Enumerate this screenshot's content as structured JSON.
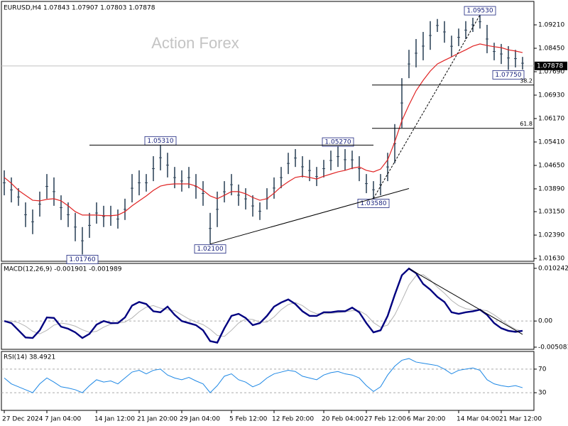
{
  "chart_data": [
    {
      "type": "ohlc",
      "title": "EURUSD,H4  1.07843 1.07907 1.07803 1.07878",
      "watermark": "Action Forex",
      "x": [
        "27 Dec 2024",
        null,
        null,
        null,
        null,
        null,
        "7 Jan 04:00",
        null,
        null,
        null,
        null,
        null,
        null,
        "14 Jan 12:00",
        null,
        null,
        null,
        null,
        null,
        "21 Jan 20:00",
        null,
        null,
        null,
        null,
        null,
        "29 Jan 04:00",
        null,
        null,
        null,
        null,
        null,
        null,
        "5 Feb 12:00",
        null,
        null,
        null,
        null,
        null,
        "12 Feb 20:00",
        null,
        null,
        null,
        null,
        null,
        null,
        "20 Feb 04:00",
        null,
        null,
        null,
        null,
        null,
        "27 Feb 12:00",
        null,
        null,
        null,
        null,
        null,
        "6 Mar 20:00",
        null,
        null,
        null,
        null,
        null,
        null,
        "14 Mar 04:00",
        null,
        null,
        null,
        null,
        null,
        "21 Mar 12:00",
        null,
        null,
        null
      ],
      "highs": [
        1.0449,
        1.0426,
        1.0391,
        1.0345,
        1.0322,
        1.038,
        1.0437,
        1.0426,
        1.0368,
        1.0345,
        1.0311,
        1.0265,
        1.0311,
        1.0345,
        1.0334,
        1.0334,
        1.0322,
        1.0357,
        1.0437,
        1.0449,
        1.0437,
        1.0495,
        1.0531,
        1.0506,
        1.046,
        1.0449,
        1.046,
        1.0437,
        1.0414,
        1.0311,
        1.038,
        1.0414,
        1.0437,
        1.0403,
        1.0391,
        1.0368,
        1.0345,
        1.0391,
        1.0426,
        1.046,
        1.0506,
        1.0518,
        1.0495,
        1.0483,
        1.046,
        1.0483,
        1.0513,
        1.0527,
        1.0518,
        1.0513,
        1.0495,
        1.0437,
        1.0414,
        1.0437,
        1.0506,
        1.0599,
        1.0748,
        1.084,
        1.0875,
        1.0898,
        1.0933,
        1.094,
        1.0933,
        1.0886,
        1.0909,
        1.0933,
        1.0944,
        1.0953,
        1.0921,
        1.0863,
        1.0859,
        1.0852,
        1.084,
        1.0817
      ],
      "lows": [
        1.0368,
        1.0345,
        1.0334,
        1.0265,
        1.0242,
        1.0299,
        1.0357,
        1.0334,
        1.0288,
        1.0265,
        1.0219,
        1.0176,
        1.023,
        1.0276,
        1.0265,
        1.0269,
        1.026,
        1.0288,
        1.0345,
        1.0368,
        1.038,
        1.0414,
        1.0449,
        1.0426,
        1.0391,
        1.038,
        1.0391,
        1.0357,
        1.0334,
        1.021,
        1.0265,
        1.0345,
        1.0368,
        1.0334,
        1.0322,
        1.0299,
        1.0288,
        1.0322,
        1.0357,
        1.0391,
        1.0437,
        1.046,
        1.0426,
        1.0414,
        1.0398,
        1.0426,
        1.0449,
        1.046,
        1.0449,
        1.0453,
        1.0414,
        1.0375,
        1.0358,
        1.0368,
        1.0414,
        1.0472,
        1.0587,
        1.0748,
        1.0783,
        1.0806,
        1.084,
        1.0898,
        1.0863,
        1.0817,
        1.0852,
        1.0875,
        1.0898,
        1.0909,
        1.0829,
        1.0806,
        1.0794,
        1.0775,
        1.0783,
        1.0776
      ],
      "color": "#34495e",
      "ma": {
        "color": "#e02424",
        "values": [
          1.0426,
          1.0407,
          1.0384,
          1.0368,
          1.0352,
          1.035,
          1.0355,
          1.0357,
          1.035,
          1.0334,
          1.0315,
          1.0304,
          1.0304,
          1.0304,
          1.0302,
          1.0302,
          1.0304,
          1.0315,
          1.0334,
          1.035,
          1.0366,
          1.0384,
          1.0398,
          1.0403,
          1.0405,
          1.0405,
          1.0405,
          1.0398,
          1.0384,
          1.0366,
          1.0357,
          1.0368,
          1.038,
          1.038,
          1.0373,
          1.0361,
          1.0352,
          1.0357,
          1.0375,
          1.0396,
          1.0412,
          1.0426,
          1.043,
          1.0426,
          1.0421,
          1.043,
          1.0437,
          1.0444,
          1.0449,
          1.0456,
          1.046,
          1.0449,
          1.0444,
          1.0453,
          1.0483,
          1.0541,
          1.061,
          1.0661,
          1.0707,
          1.0741,
          1.0771,
          1.0794,
          1.0806,
          1.0817,
          1.0829,
          1.084,
          1.0852,
          1.0859,
          1.0854,
          1.085,
          1.0847,
          1.084,
          1.0836,
          1.0831
        ]
      },
      "ylim": [
        1.0154,
        1.0997
      ],
      "yticks": [
        {
          "value": 1.0921,
          "label": "1.09210"
        },
        {
          "value": 1.0845,
          "label": "1.08450"
        },
        {
          "value": 1.0769,
          "label": "1.07690"
        },
        {
          "value": 1.0693,
          "label": "1.06930"
        },
        {
          "value": 1.0617,
          "label": "1.06170"
        },
        {
          "value": 1.0541,
          "label": "1.05410"
        },
        {
          "value": 1.0465,
          "label": "1.04650"
        },
        {
          "value": 1.0389,
          "label": "1.03890"
        },
        {
          "value": 1.0315,
          "label": "1.03150"
        },
        {
          "value": 1.0239,
          "label": "1.02390"
        },
        {
          "value": 1.0163,
          "label": "1.01630"
        }
      ],
      "current_price": {
        "value": 1.07878,
        "label": "1.07878"
      },
      "annotations": [
        {
          "label": "1.05310",
          "value": 1.0531,
          "side": "high"
        },
        {
          "label": "1.05270",
          "value": 1.0527,
          "side": "high"
        },
        {
          "label": "1.09530",
          "value": 1.0953,
          "side": "high"
        },
        {
          "label": "1.01760",
          "value": 1.0176,
          "side": "low"
        },
        {
          "label": "1.02100",
          "value": 1.021,
          "side": "low"
        },
        {
          "label": "1.03580",
          "value": 1.0358,
          "side": "low"
        },
        {
          "label": "1.07750",
          "value": 1.0775,
          "side": "low"
        }
      ],
      "fib_levels": [
        38.2,
        61.8
      ]
    },
    {
      "type": "macd",
      "title": "MACD(12,26,9) -0.001901 -0.001989",
      "macd": {
        "color": "#000080",
        "values": [
          0,
          -0.0004,
          -0.0018,
          -0.0032,
          -0.0033,
          -0.0018,
          0.0007,
          0.0006,
          -0.0011,
          -0.0015,
          -0.0022,
          -0.0033,
          -0.0025,
          -0.0007,
          0,
          -0.0004,
          -0.0004,
          0.0007,
          0.003,
          0.0037,
          0.0033,
          0.0019,
          0.0017,
          0.0028,
          0.0012,
          0,
          -0.0004,
          -0.0008,
          -0.0018,
          -0.0039,
          -0.0042,
          -0.0014,
          0.001,
          0.0014,
          0.0006,
          -0.0008,
          -0.0004,
          0.001,
          0.0028,
          0.0036,
          0.0042,
          0.0033,
          0.0019,
          0.001,
          0.001,
          0.0017,
          0.0017,
          0.0019,
          0.0019,
          0.0026,
          0.0017,
          -0.0004,
          -0.0022,
          -0.0018,
          0.001,
          0.0051,
          0.0089,
          0.0102,
          0.0093,
          0.0072,
          0.0061,
          0.0047,
          0.0037,
          0.0017,
          0.0014,
          0.0017,
          0.0019,
          0.0022,
          0.0012,
          -0.0004,
          -0.0014,
          -0.0019,
          -0.0021,
          -0.0019
        ]
      },
      "signal": {
        "color": "#b4b4b4",
        "values": [
          0,
          0,
          -0.0003,
          -0.001,
          -0.002,
          -0.0025,
          -0.0018,
          -0.0008,
          -0.0004,
          -0.0006,
          -0.001,
          -0.0017,
          -0.0022,
          -0.002,
          -0.0012,
          -0.0006,
          -0.0004,
          -0.0002,
          0.0006,
          0.0018,
          0.0027,
          0.003,
          0.0025,
          0.0022,
          0.002,
          0.0012,
          0.0004,
          -0.0002,
          -0.0007,
          -0.0016,
          -0.0028,
          -0.003,
          -0.0018,
          -0.0004,
          0.0004,
          0.0003,
          -0.0002,
          -0.0002,
          0.0008,
          0.0022,
          0.0032,
          0.0036,
          0.003,
          0.002,
          0.0014,
          0.0014,
          0.0015,
          0.0016,
          0.0018,
          0.002,
          0.002,
          0.0012,
          -0.0003,
          -0.0012,
          -0.0008,
          0.0012,
          0.004,
          0.007,
          0.0088,
          0.009,
          0.008,
          0.0066,
          0.0054,
          0.004,
          0.003,
          0.0024,
          0.0022,
          0.0022,
          0.002,
          0.0012,
          0.0002,
          -0.0008,
          -0.0016,
          -0.002
        ]
      },
      "ylim": [
        -0.0055,
        0.0112
      ],
      "yticks": [
        0.010242,
        {
          "value": 0,
          "label": "0.00"
        },
        -0.005081
      ]
    },
    {
      "type": "rsi",
      "title": "RSI(14) 38.4921",
      "color": "#1e88e5",
      "values": [
        55,
        45,
        40,
        35,
        30,
        45,
        55,
        48,
        40,
        38,
        35,
        30,
        42,
        52,
        48,
        50,
        45,
        55,
        65,
        68,
        62,
        68,
        70,
        60,
        55,
        52,
        56,
        50,
        45,
        30,
        42,
        58,
        62,
        52,
        48,
        40,
        45,
        55,
        62,
        65,
        68,
        66,
        58,
        55,
        52,
        60,
        64,
        66,
        62,
        60,
        55,
        42,
        32,
        40,
        60,
        75,
        85,
        88,
        82,
        80,
        78,
        76,
        70,
        62,
        68,
        70,
        72,
        68,
        52,
        45,
        42,
        40,
        42,
        38.4921
      ],
      "ylim": [
        0,
        100
      ],
      "yticks": [
        70,
        30
      ]
    }
  ]
}
